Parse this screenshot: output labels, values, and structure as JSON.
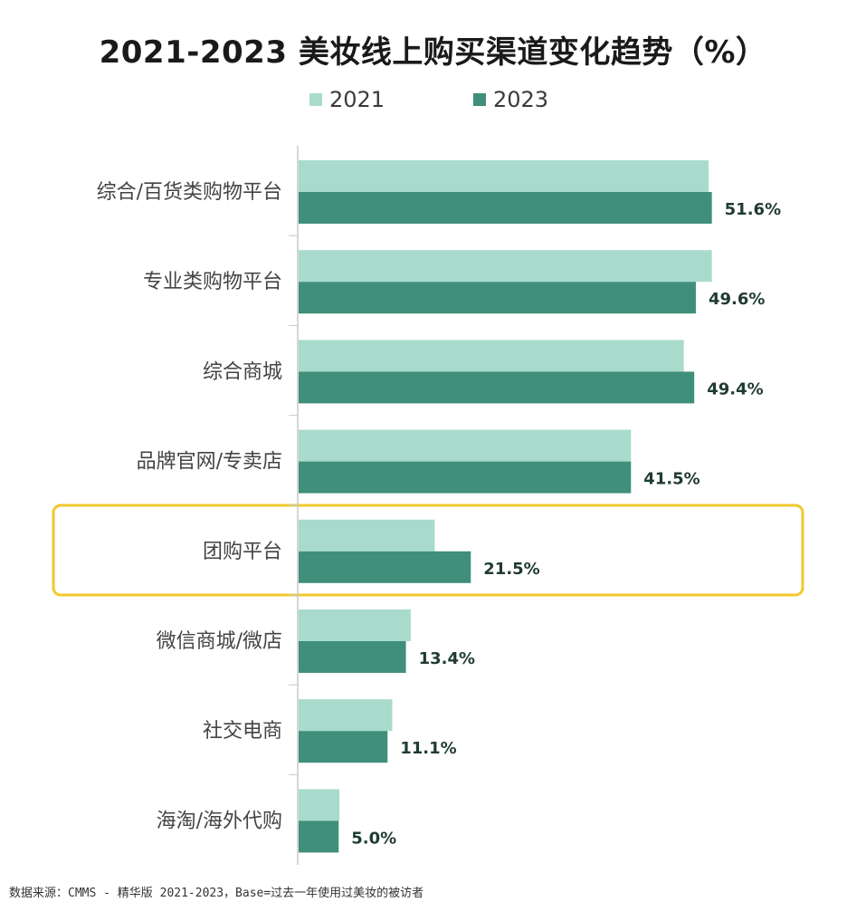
{
  "chart_data": {
    "type": "bar",
    "orientation": "horizontal",
    "title": "2021-2023 美妆线上购买渠道变化趋势（%）",
    "categories": [
      "综合/百货类购物平台",
      "专业类购物平台",
      "综合商城",
      "品牌官网/专卖店",
      "团购平台",
      "微信商城/微店",
      "社交电商",
      "海淘/海外代购"
    ],
    "series": [
      {
        "name": "2021",
        "values": [
          51.2,
          51.6,
          48.1,
          41.5,
          17.0,
          14.0,
          11.7,
          5.1
        ],
        "color": "#a9dbcd"
      },
      {
        "name": "2023",
        "values": [
          51.6,
          49.6,
          49.4,
          41.5,
          21.5,
          13.4,
          11.1,
          5.0
        ],
        "color": "#3f8f7a"
      }
    ],
    "data_labels": [
      "51.6%",
      "49.6%",
      "49.4%",
      "41.5%",
      "21.5%",
      "13.4%",
      "11.1%",
      "5.0%"
    ],
    "xlim": [
      0,
      56
    ],
    "highlight_category": "团购平台",
    "highlight_color": "#f2c82c",
    "grid": false
  },
  "footer": {
    "source": "数据来源：CMMS - 精华版 2021-2023，Base=过去一年使用过美妆的被访者"
  }
}
